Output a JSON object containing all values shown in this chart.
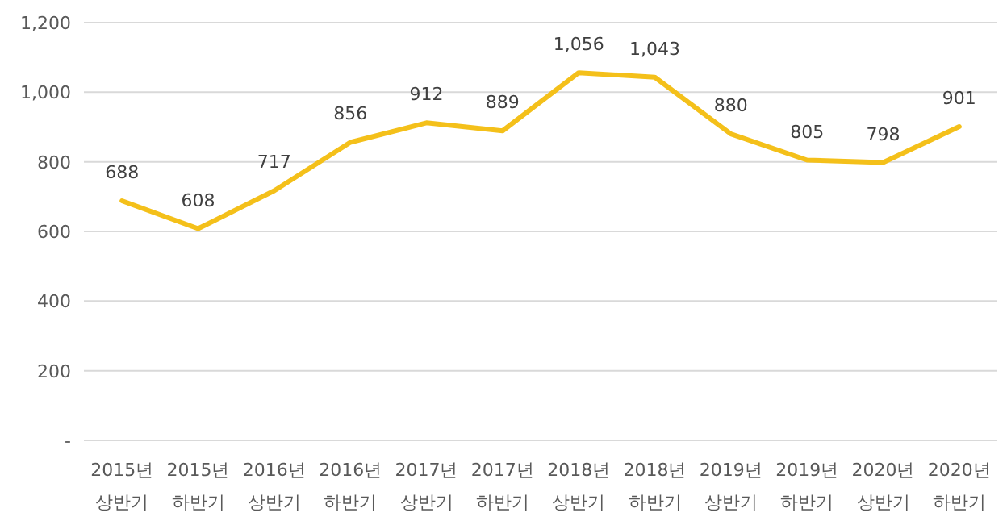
{
  "chart_data": {
    "type": "line",
    "categories": [
      "2015년 상반기",
      "2015년 하반기",
      "2016년 상반기",
      "2016년 하반기",
      "2017년 상반기",
      "2017년 하반기",
      "2018년 상반기",
      "2018년 하반기",
      "2019년 상반기",
      "2019년 하반기",
      "2020년 상반기",
      "2020년 하반기"
    ],
    "series": [
      {
        "color": "#f4c01a",
        "values": [
          688,
          608,
          717,
          856,
          912,
          889,
          1056,
          1043,
          880,
          805,
          798,
          901
        ],
        "value_labels": [
          "688",
          "608",
          "717",
          "856",
          "912",
          "889",
          "1,056",
          "1,043",
          "880",
          "805",
          "798",
          "901"
        ]
      }
    ],
    "ylim": [
      0,
      1200
    ],
    "yticks": [
      {
        "value": 0,
        "label": "-"
      },
      200,
      400,
      600,
      800,
      {
        "value": 1000,
        "label": "1,000"
      },
      {
        "value": 1200,
        "label": "1,200"
      }
    ],
    "grid": "y",
    "marker": "none",
    "line_style": "solid"
  }
}
